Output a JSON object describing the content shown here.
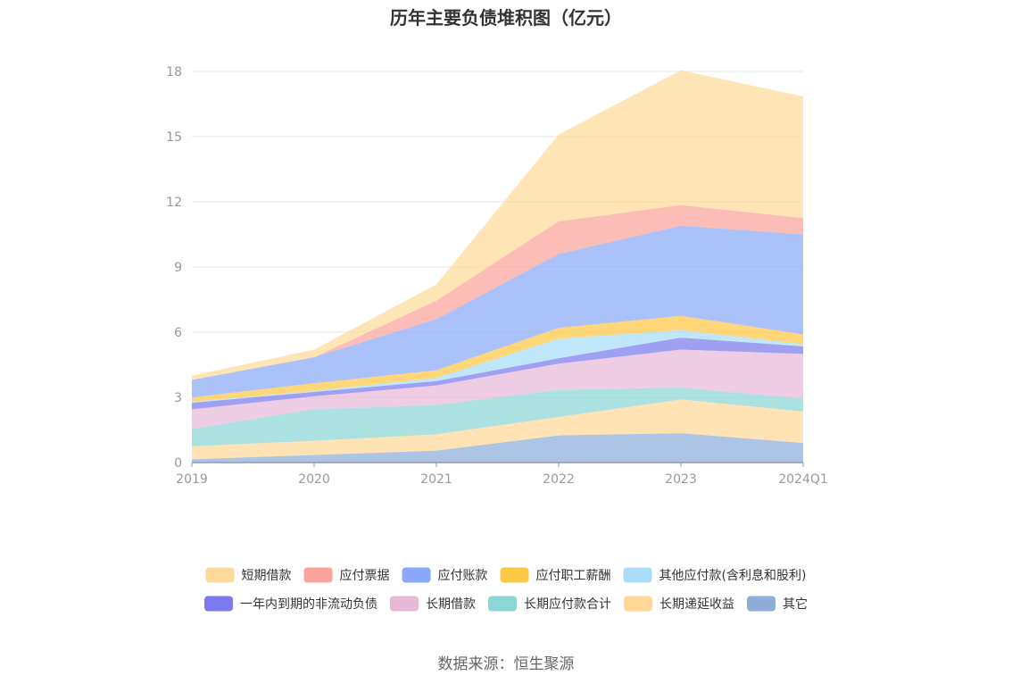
{
  "chart_data": {
    "type": "area",
    "title": "历年主要负债堆积图（亿元）",
    "categories": [
      "2019",
      "2020",
      "2021",
      "2022",
      "2023",
      "2024Q1"
    ],
    "ylim": [
      0,
      18
    ],
    "yticks": [
      0,
      3,
      6,
      9,
      12,
      15,
      18
    ],
    "grid": true,
    "legend_position": "bottom",
    "series": [
      {
        "name": "其它",
        "color": "#8eaed9",
        "values": [
          0.15,
          0.35,
          0.55,
          1.25,
          1.35,
          0.9
        ]
      },
      {
        "name": "长期递延收益",
        "color": "#ffd897",
        "values": [
          0.6,
          0.65,
          0.75,
          0.85,
          1.55,
          1.45
        ]
      },
      {
        "name": "长期应付款合计",
        "color": "#8cd6d6",
        "values": [
          0.8,
          1.45,
          1.35,
          1.25,
          0.55,
          0.6
        ]
      },
      {
        "name": "长期借款",
        "color": "#e8b8d8",
        "values": [
          0.9,
          0.6,
          0.9,
          1.2,
          1.75,
          2.05
        ]
      },
      {
        "name": "一年内到期的非流动负债",
        "color": "#7b7bef",
        "values": [
          0.3,
          0.2,
          0.2,
          0.25,
          0.55,
          0.35
        ]
      },
      {
        "name": "其他应付款(含利息和股利)",
        "color": "#a8dcf8",
        "values": [
          0.05,
          0.05,
          0.15,
          0.9,
          0.35,
          0.1
        ]
      },
      {
        "name": "应付职工薪酬",
        "color": "#ffc845",
        "values": [
          0.2,
          0.35,
          0.35,
          0.5,
          0.65,
          0.45
        ]
      },
      {
        "name": "应付账款",
        "color": "#8aa9f8",
        "values": [
          0.8,
          1.2,
          2.35,
          3.4,
          4.15,
          4.6
        ]
      },
      {
        "name": "应付票据",
        "color": "#f9a39a",
        "values": [
          0.0,
          0.0,
          0.85,
          1.5,
          0.95,
          0.75
        ]
      },
      {
        "name": "短期借款",
        "color": "#ffd99a",
        "values": [
          0.2,
          0.35,
          0.75,
          4.0,
          6.2,
          5.6
        ]
      }
    ],
    "legend_order": [
      "短期借款",
      "应付票据",
      "应付账款",
      "应付职工薪酬",
      "其他应付款(含利息和股利)",
      "一年内到期的非流动负债",
      "长期借款",
      "长期应付款合计",
      "长期递延收益",
      "其它"
    ]
  },
  "footer": {
    "source": "数据来源：恒生聚源"
  }
}
